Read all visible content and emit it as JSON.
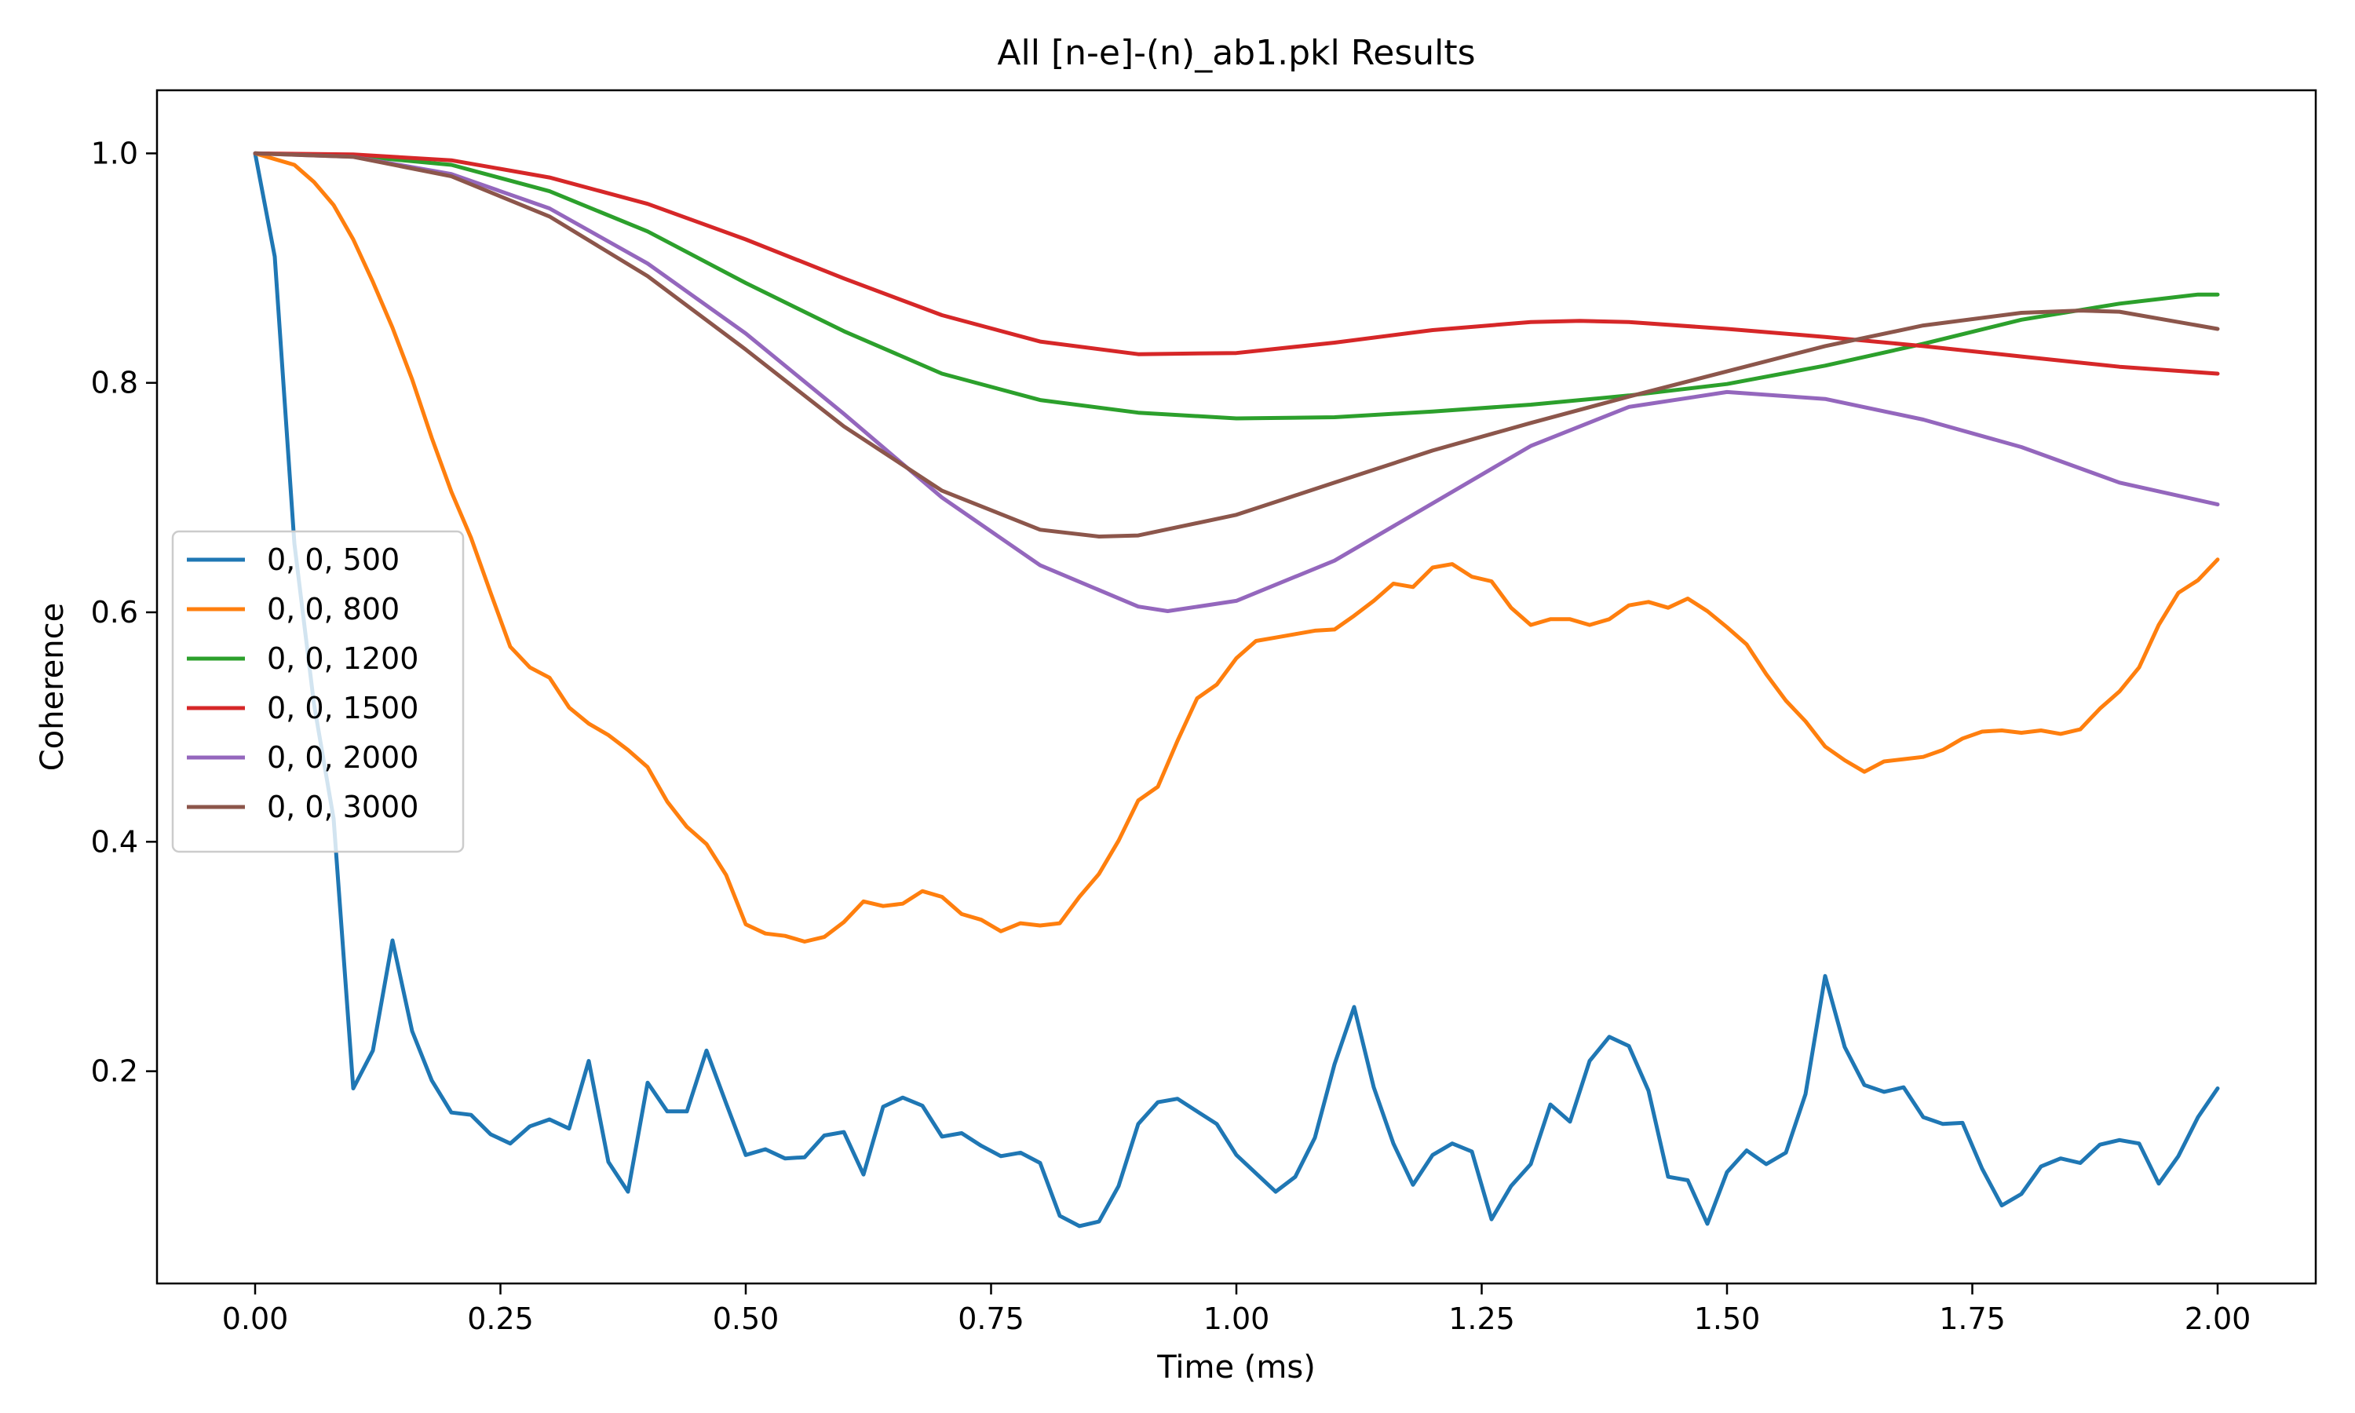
{
  "chart_data": {
    "type": "line",
    "title": "All [n-e]-(n)_ab1.pkl Results",
    "xlabel": "Time (ms)",
    "ylabel": "Coherence",
    "xlim": [
      -0.1,
      2.1
    ],
    "ylim": [
      0.015,
      1.055
    ],
    "xticks": [
      0.0,
      0.25,
      0.5,
      0.75,
      1.0,
      1.25,
      1.5,
      1.75,
      2.0
    ],
    "xtick_labels": [
      "0.00",
      "0.25",
      "0.50",
      "0.75",
      "1.00",
      "1.25",
      "1.50",
      "1.75",
      "2.00"
    ],
    "yticks": [
      0.2,
      0.4,
      0.6,
      0.8,
      1.0
    ],
    "ytick_labels": [
      "0.2",
      "0.4",
      "0.6",
      "0.8",
      "1.0"
    ],
    "grid": false,
    "legend": "center-left",
    "series": [
      {
        "name": "0, 0, 500",
        "color": "#1f77b4",
        "points": [
          [
            0.0,
            1.0
          ],
          [
            0.02,
            0.91
          ],
          [
            0.04,
            0.66
          ],
          [
            0.06,
            0.52
          ],
          [
            0.08,
            0.42
          ],
          [
            0.1,
            0.185
          ],
          [
            0.12,
            0.218
          ],
          [
            0.14,
            0.314
          ],
          [
            0.16,
            0.235
          ],
          [
            0.18,
            0.192
          ],
          [
            0.2,
            0.164
          ],
          [
            0.22,
            0.162
          ],
          [
            0.24,
            0.145
          ],
          [
            0.26,
            0.137
          ],
          [
            0.28,
            0.152
          ],
          [
            0.3,
            0.158
          ],
          [
            0.32,
            0.15
          ],
          [
            0.34,
            0.209
          ],
          [
            0.36,
            0.121
          ],
          [
            0.38,
            0.095
          ],
          [
            0.4,
            0.19
          ],
          [
            0.42,
            0.165
          ],
          [
            0.44,
            0.165
          ],
          [
            0.46,
            0.218
          ],
          [
            0.48,
            0.172
          ],
          [
            0.5,
            0.127
          ],
          [
            0.52,
            0.132
          ],
          [
            0.54,
            0.124
          ],
          [
            0.56,
            0.125
          ],
          [
            0.58,
            0.144
          ],
          [
            0.6,
            0.147
          ],
          [
            0.62,
            0.11
          ],
          [
            0.64,
            0.169
          ],
          [
            0.66,
            0.177
          ],
          [
            0.68,
            0.17
          ],
          [
            0.7,
            0.143
          ],
          [
            0.72,
            0.146
          ],
          [
            0.74,
            0.135
          ],
          [
            0.76,
            0.126
          ],
          [
            0.78,
            0.129
          ],
          [
            0.8,
            0.12
          ],
          [
            0.82,
            0.074
          ],
          [
            0.84,
            0.065
          ],
          [
            0.86,
            0.069
          ],
          [
            0.88,
            0.1
          ],
          [
            0.9,
            0.154
          ],
          [
            0.92,
            0.173
          ],
          [
            0.94,
            0.176
          ],
          [
            0.96,
            0.165
          ],
          [
            0.98,
            0.154
          ],
          [
            1.0,
            0.127
          ],
          [
            1.02,
            0.111
          ],
          [
            1.04,
            0.095
          ],
          [
            1.06,
            0.108
          ],
          [
            1.08,
            0.142
          ],
          [
            1.1,
            0.206
          ],
          [
            1.12,
            0.256
          ],
          [
            1.14,
            0.186
          ],
          [
            1.16,
            0.137
          ],
          [
            1.18,
            0.101
          ],
          [
            1.2,
            0.127
          ],
          [
            1.22,
            0.137
          ],
          [
            1.24,
            0.13
          ],
          [
            1.26,
            0.071
          ],
          [
            1.28,
            0.1
          ],
          [
            1.3,
            0.119
          ],
          [
            1.32,
            0.171
          ],
          [
            1.34,
            0.156
          ],
          [
            1.36,
            0.209
          ],
          [
            1.38,
            0.23
          ],
          [
            1.4,
            0.222
          ],
          [
            1.42,
            0.183
          ],
          [
            1.44,
            0.108
          ],
          [
            1.46,
            0.105
          ],
          [
            1.48,
            0.067
          ],
          [
            1.5,
            0.112
          ],
          [
            1.52,
            0.131
          ],
          [
            1.54,
            0.119
          ],
          [
            1.56,
            0.129
          ],
          [
            1.58,
            0.18
          ],
          [
            1.6,
            0.283
          ],
          [
            1.62,
            0.221
          ],
          [
            1.64,
            0.188
          ],
          [
            1.66,
            0.182
          ],
          [
            1.68,
            0.186
          ],
          [
            1.7,
            0.16
          ],
          [
            1.72,
            0.154
          ],
          [
            1.74,
            0.155
          ],
          [
            1.76,
            0.115
          ],
          [
            1.78,
            0.083
          ],
          [
            1.8,
            0.093
          ],
          [
            1.82,
            0.117
          ],
          [
            1.84,
            0.124
          ],
          [
            1.86,
            0.12
          ],
          [
            1.88,
            0.136
          ],
          [
            1.9,
            0.14
          ],
          [
            1.92,
            0.137
          ],
          [
            1.94,
            0.102
          ],
          [
            1.96,
            0.126
          ],
          [
            1.98,
            0.16
          ],
          [
            2.0,
            0.185
          ]
        ]
      },
      {
        "name": "0, 0, 800",
        "color": "#ff7f0e",
        "points": [
          [
            0.0,
            1.0
          ],
          [
            0.02,
            0.995
          ],
          [
            0.04,
            0.99
          ],
          [
            0.06,
            0.975
          ],
          [
            0.08,
            0.955
          ],
          [
            0.1,
            0.925
          ],
          [
            0.12,
            0.888
          ],
          [
            0.14,
            0.848
          ],
          [
            0.16,
            0.803
          ],
          [
            0.18,
            0.752
          ],
          [
            0.2,
            0.705
          ],
          [
            0.22,
            0.665
          ],
          [
            0.24,
            0.617
          ],
          [
            0.26,
            0.57
          ],
          [
            0.28,
            0.552
          ],
          [
            0.3,
            0.543
          ],
          [
            0.32,
            0.517
          ],
          [
            0.34,
            0.503
          ],
          [
            0.36,
            0.493
          ],
          [
            0.38,
            0.48
          ],
          [
            0.4,
            0.465
          ],
          [
            0.42,
            0.435
          ],
          [
            0.44,
            0.413
          ],
          [
            0.46,
            0.398
          ],
          [
            0.48,
            0.371
          ],
          [
            0.5,
            0.328
          ],
          [
            0.52,
            0.32
          ],
          [
            0.54,
            0.318
          ],
          [
            0.56,
            0.313
          ],
          [
            0.58,
            0.317
          ],
          [
            0.6,
            0.33
          ],
          [
            0.62,
            0.348
          ],
          [
            0.64,
            0.344
          ],
          [
            0.66,
            0.346
          ],
          [
            0.68,
            0.357
          ],
          [
            0.7,
            0.352
          ],
          [
            0.72,
            0.337
          ],
          [
            0.74,
            0.332
          ],
          [
            0.76,
            0.322
          ],
          [
            0.78,
            0.329
          ],
          [
            0.8,
            0.327
          ],
          [
            0.82,
            0.329
          ],
          [
            0.84,
            0.352
          ],
          [
            0.86,
            0.372
          ],
          [
            0.88,
            0.401
          ],
          [
            0.9,
            0.436
          ],
          [
            0.92,
            0.448
          ],
          [
            0.94,
            0.488
          ],
          [
            0.96,
            0.525
          ],
          [
            0.98,
            0.537
          ],
          [
            1.0,
            0.56
          ],
          [
            1.02,
            0.575
          ],
          [
            1.04,
            0.578
          ],
          [
            1.06,
            0.581
          ],
          [
            1.08,
            0.584
          ],
          [
            1.1,
            0.585
          ],
          [
            1.12,
            0.597
          ],
          [
            1.14,
            0.61
          ],
          [
            1.16,
            0.625
          ],
          [
            1.18,
            0.622
          ],
          [
            1.2,
            0.639
          ],
          [
            1.22,
            0.642
          ],
          [
            1.24,
            0.631
          ],
          [
            1.26,
            0.627
          ],
          [
            1.28,
            0.604
          ],
          [
            1.3,
            0.589
          ],
          [
            1.32,
            0.594
          ],
          [
            1.34,
            0.594
          ],
          [
            1.36,
            0.589
          ],
          [
            1.38,
            0.594
          ],
          [
            1.4,
            0.606
          ],
          [
            1.42,
            0.609
          ],
          [
            1.44,
            0.604
          ],
          [
            1.46,
            0.612
          ],
          [
            1.48,
            0.601
          ],
          [
            1.5,
            0.587
          ],
          [
            1.52,
            0.572
          ],
          [
            1.54,
            0.546
          ],
          [
            1.56,
            0.523
          ],
          [
            1.58,
            0.505
          ],
          [
            1.6,
            0.483
          ],
          [
            1.62,
            0.471
          ],
          [
            1.64,
            0.461
          ],
          [
            1.66,
            0.47
          ],
          [
            1.68,
            0.472
          ],
          [
            1.7,
            0.474
          ],
          [
            1.72,
            0.48
          ],
          [
            1.74,
            0.49
          ],
          [
            1.76,
            0.496
          ],
          [
            1.78,
            0.497
          ],
          [
            1.8,
            0.495
          ],
          [
            1.82,
            0.497
          ],
          [
            1.84,
            0.494
          ],
          [
            1.86,
            0.498
          ],
          [
            1.88,
            0.516
          ],
          [
            1.9,
            0.531
          ],
          [
            1.92,
            0.552
          ],
          [
            1.94,
            0.589
          ],
          [
            1.96,
            0.617
          ],
          [
            1.98,
            0.628
          ],
          [
            2.0,
            0.646
          ]
        ]
      },
      {
        "name": "0, 0, 1200",
        "color": "#2ca02c",
        "points": [
          [
            0.0,
            1.0
          ],
          [
            0.1,
            0.998
          ],
          [
            0.2,
            0.99
          ],
          [
            0.3,
            0.967
          ],
          [
            0.4,
            0.932
          ],
          [
            0.5,
            0.887
          ],
          [
            0.6,
            0.845
          ],
          [
            0.7,
            0.808
          ],
          [
            0.8,
            0.785
          ],
          [
            0.9,
            0.774
          ],
          [
            1.0,
            0.769
          ],
          [
            1.1,
            0.77
          ],
          [
            1.2,
            0.775
          ],
          [
            1.3,
            0.781
          ],
          [
            1.4,
            0.789
          ],
          [
            1.5,
            0.799
          ],
          [
            1.6,
            0.815
          ],
          [
            1.7,
            0.834
          ],
          [
            1.8,
            0.855
          ],
          [
            1.9,
            0.869
          ],
          [
            1.98,
            0.877
          ],
          [
            2.0,
            0.877
          ]
        ]
      },
      {
        "name": "0, 0, 1500",
        "color": "#d62728",
        "points": [
          [
            0.0,
            1.0
          ],
          [
            0.1,
            0.999
          ],
          [
            0.2,
            0.994
          ],
          [
            0.3,
            0.979
          ],
          [
            0.4,
            0.956
          ],
          [
            0.5,
            0.925
          ],
          [
            0.6,
            0.891
          ],
          [
            0.7,
            0.859
          ],
          [
            0.8,
            0.836
          ],
          [
            0.9,
            0.825
          ],
          [
            1.0,
            0.826
          ],
          [
            1.1,
            0.835
          ],
          [
            1.2,
            0.846
          ],
          [
            1.3,
            0.853
          ],
          [
            1.35,
            0.854
          ],
          [
            1.4,
            0.853
          ],
          [
            1.5,
            0.847
          ],
          [
            1.6,
            0.84
          ],
          [
            1.7,
            0.832
          ],
          [
            1.8,
            0.823
          ],
          [
            1.9,
            0.814
          ],
          [
            2.0,
            0.808
          ]
        ]
      },
      {
        "name": "0, 0, 2000",
        "color": "#9467bd",
        "points": [
          [
            0.0,
            1.0
          ],
          [
            0.1,
            0.997
          ],
          [
            0.2,
            0.982
          ],
          [
            0.3,
            0.952
          ],
          [
            0.4,
            0.904
          ],
          [
            0.5,
            0.843
          ],
          [
            0.6,
            0.773
          ],
          [
            0.7,
            0.7
          ],
          [
            0.8,
            0.641
          ],
          [
            0.9,
            0.605
          ],
          [
            0.93,
            0.601
          ],
          [
            1.0,
            0.61
          ],
          [
            1.1,
            0.645
          ],
          [
            1.2,
            0.695
          ],
          [
            1.3,
            0.745
          ],
          [
            1.4,
            0.779
          ],
          [
            1.5,
            0.792
          ],
          [
            1.6,
            0.786
          ],
          [
            1.7,
            0.768
          ],
          [
            1.8,
            0.744
          ],
          [
            1.9,
            0.713
          ],
          [
            2.0,
            0.694
          ]
        ]
      },
      {
        "name": "0, 0, 3000",
        "color": "#8c564b",
        "points": [
          [
            0.0,
            1.0
          ],
          [
            0.1,
            0.997
          ],
          [
            0.2,
            0.98
          ],
          [
            0.3,
            0.945
          ],
          [
            0.4,
            0.893
          ],
          [
            0.5,
            0.829
          ],
          [
            0.6,
            0.762
          ],
          [
            0.7,
            0.706
          ],
          [
            0.8,
            0.672
          ],
          [
            0.86,
            0.666
          ],
          [
            0.9,
            0.667
          ],
          [
            1.0,
            0.685
          ],
          [
            1.1,
            0.713
          ],
          [
            1.2,
            0.741
          ],
          [
            1.3,
            0.765
          ],
          [
            1.4,
            0.788
          ],
          [
            1.5,
            0.81
          ],
          [
            1.6,
            0.832
          ],
          [
            1.7,
            0.85
          ],
          [
            1.8,
            0.861
          ],
          [
            1.86,
            0.863
          ],
          [
            1.9,
            0.862
          ],
          [
            2.0,
            0.847
          ]
        ]
      }
    ]
  }
}
